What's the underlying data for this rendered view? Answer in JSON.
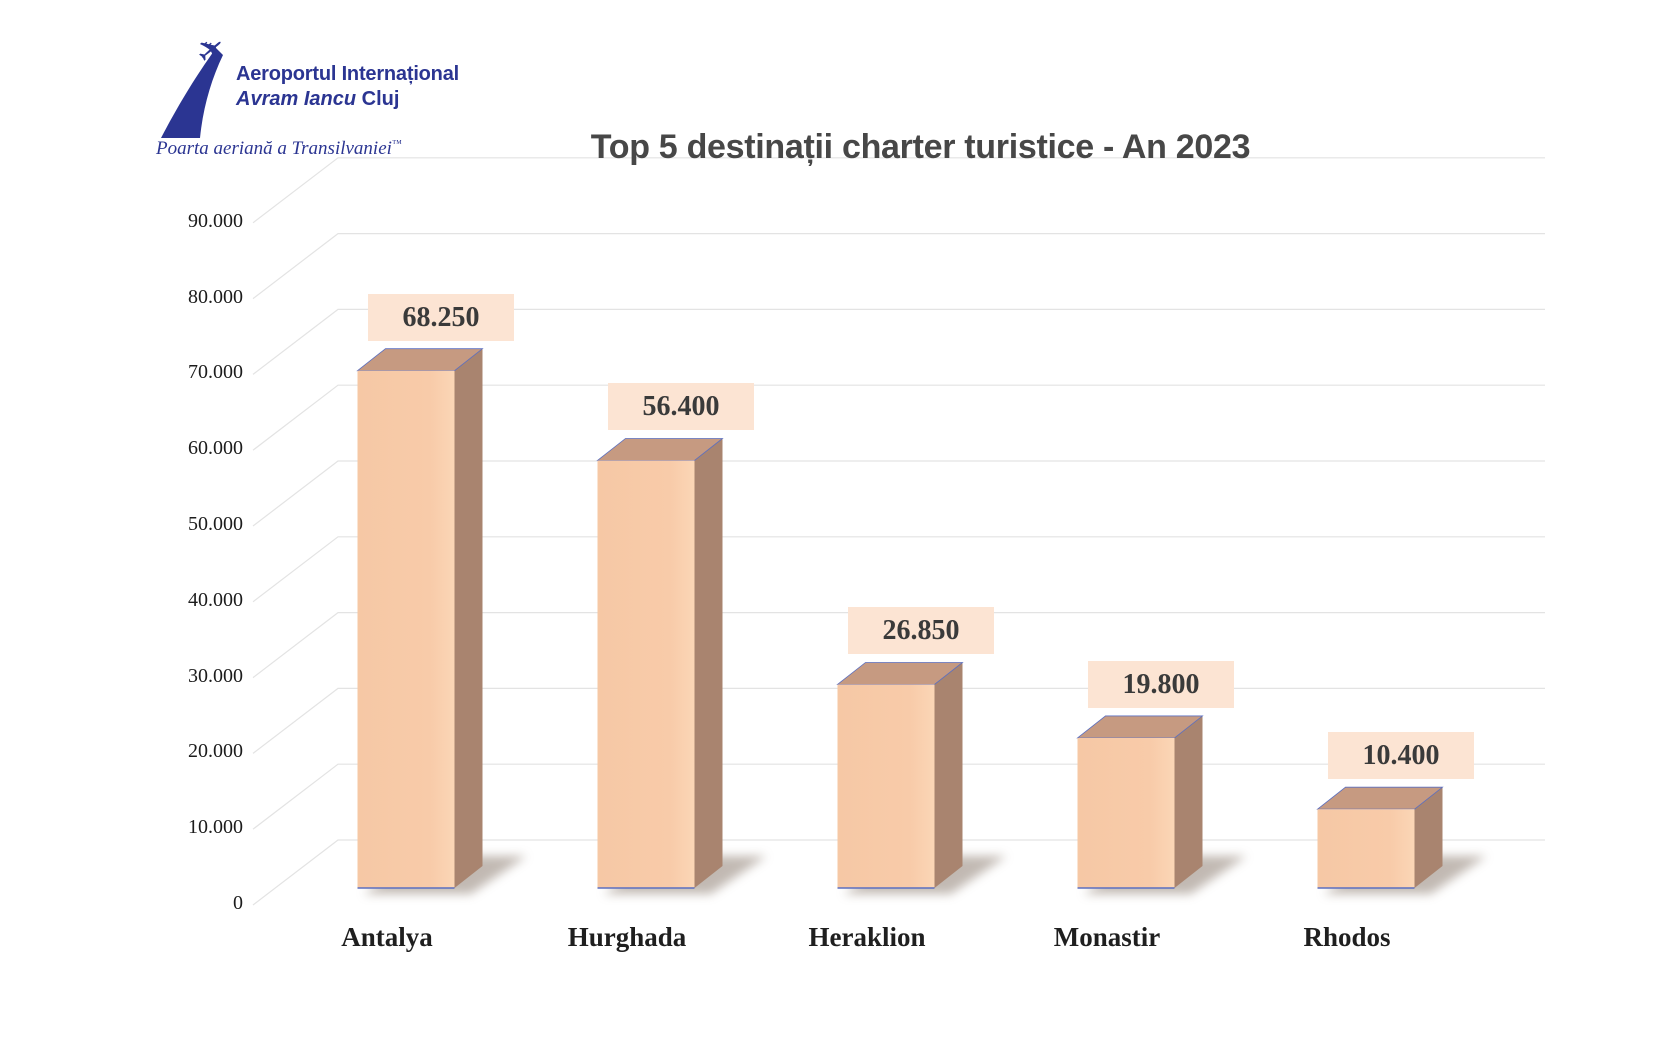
{
  "logo": {
    "line1": "Aeroportul Internațional",
    "line2_italic": "Avram Iancu",
    "line2_regular": " Cluj",
    "tagline": "Poarta aeriană a Transilvaniei",
    "trademark": "™",
    "brand_color": "#2b3592",
    "icon": "airplane-swoosh-icon"
  },
  "title": "Top 5 destinații charter turistice - An 2023",
  "chart_data": {
    "type": "bar",
    "style": "3d-column",
    "title": "Top 5 destinații charter turistice - An 2023",
    "categories": [
      "Antalya",
      "Hurghada",
      "Heraklion",
      "Monastir",
      "Rhodos"
    ],
    "values": [
      68250,
      56400,
      26850,
      19800,
      10400
    ],
    "data_labels": [
      "68.250",
      "56.400",
      "26.850",
      "19.800",
      "10.400"
    ],
    "xlabel": "",
    "ylabel": "",
    "ylim": [
      0,
      90000
    ],
    "y_ticks": [
      {
        "value": 0,
        "label": "0"
      },
      {
        "value": 10000,
        "label": "10.000"
      },
      {
        "value": 20000,
        "label": "20.000"
      },
      {
        "value": 30000,
        "label": "30.000"
      },
      {
        "value": 40000,
        "label": "40.000"
      },
      {
        "value": 50000,
        "label": "50.000"
      },
      {
        "value": 60000,
        "label": "60.000"
      },
      {
        "value": 70000,
        "label": "70.000"
      },
      {
        "value": 80000,
        "label": "80.000"
      },
      {
        "value": 90000,
        "label": "90.000"
      }
    ],
    "grid": true,
    "legend": false,
    "colors": {
      "bar_front": "#f8cba9",
      "bar_front_light": "#fbd6b6",
      "bar_top": "#c69a81",
      "bar_side": "#a9846f",
      "edge_blue": "#5b6fc0",
      "label_box_bg": "#fce4d3",
      "label_text": "#3a3a3a",
      "grid_line": "#e3e3e3",
      "axis_text": "#1c1c1c",
      "category_text": "#1f1f1f",
      "shadow": "#857468"
    }
  }
}
